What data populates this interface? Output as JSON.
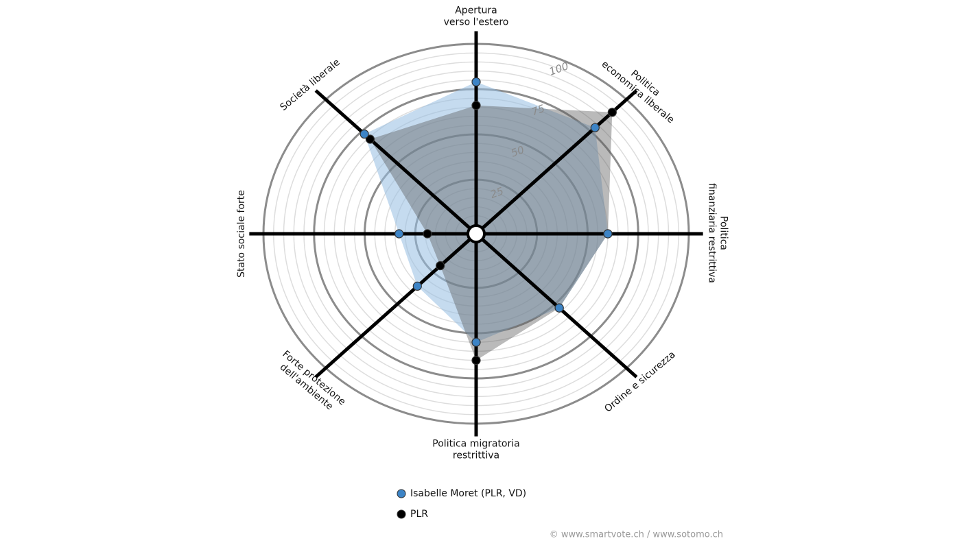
{
  "chart_data": {
    "type": "radar",
    "categories": [
      [
        "Apertura",
        "verso l'estero"
      ],
      [
        "Politica",
        "economica liberale"
      ],
      [
        "Politica",
        "finanziaria restrittiva"
      ],
      [
        "Ordine e sicurezza"
      ],
      [
        "Politica migratoria",
        "restrittiva"
      ],
      [
        "Forte protezione",
        "dell'ambiente"
      ],
      [
        "Stato sociale forte"
      ],
      [
        "Società liberale"
      ]
    ],
    "series": [
      {
        "name": "Isabelle Moret (PLR, VD)",
        "color": "#3d84c6",
        "fill": "rgba(150,190,225,0.55)",
        "values": [
          79,
          78,
          60,
          53,
          55,
          36,
          33,
          73
        ]
      },
      {
        "name": "PLR",
        "color": "#000000",
        "fill": "rgba(90,90,90,0.42)",
        "values": [
          66,
          90,
          60,
          53,
          65,
          20,
          19,
          69
        ]
      }
    ],
    "ylim": [
      0,
      100
    ],
    "yticks": [
      25,
      50,
      75,
      100
    ],
    "grid": true,
    "credit": "© www.smartvote.ch / www.sotomo.ch"
  }
}
